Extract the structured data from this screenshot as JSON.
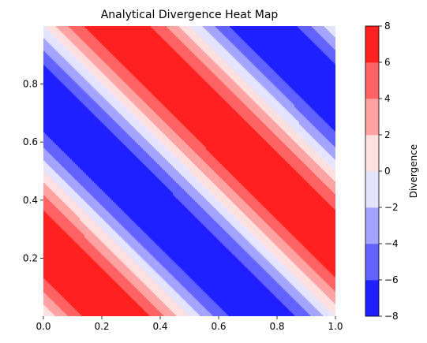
{
  "chart_data": {
    "type": "heatmap",
    "subtype": "filled-contour",
    "title": "Analytical Divergence Heat Map",
    "xlabel": "",
    "ylabel": "",
    "xlim": [
      0,
      1
    ],
    "ylim": [
      0.001,
      0.999
    ],
    "x_ticks": [
      0.0,
      0.2,
      0.4,
      0.6,
      0.8,
      1.0
    ],
    "x_tick_labels": [
      "0.0",
      "0.2",
      "0.4",
      "0.6",
      "0.8",
      "1.0"
    ],
    "y_ticks": [
      0.2,
      0.4,
      0.6,
      0.8
    ],
    "y_tick_labels": [
      "0.2",
      "0.4",
      "0.6",
      "0.8"
    ],
    "field": "divergence = 8*sin(2*pi*(x+y))",
    "contour_levels": [
      -8,
      -6,
      -4,
      -2,
      0,
      2,
      4,
      6,
      8
    ],
    "level_colors": [
      "#1f1fff",
      "#6262ff",
      "#a4a4ff",
      "#e4e4ff",
      "#ffe0e0",
      "#ffa2a2",
      "#ff6262",
      "#ff2020"
    ],
    "colormap": "bwr",
    "colorbar": {
      "label": "Divergence",
      "ticks": [
        -8,
        -6,
        -4,
        -2,
        0,
        2,
        4,
        6,
        8
      ],
      "tick_labels": [
        "−8",
        "−6",
        "−4",
        "−2",
        "0",
        "2",
        "4",
        "6",
        "8"
      ],
      "placement": "right"
    },
    "grid": false,
    "legend": "none"
  }
}
